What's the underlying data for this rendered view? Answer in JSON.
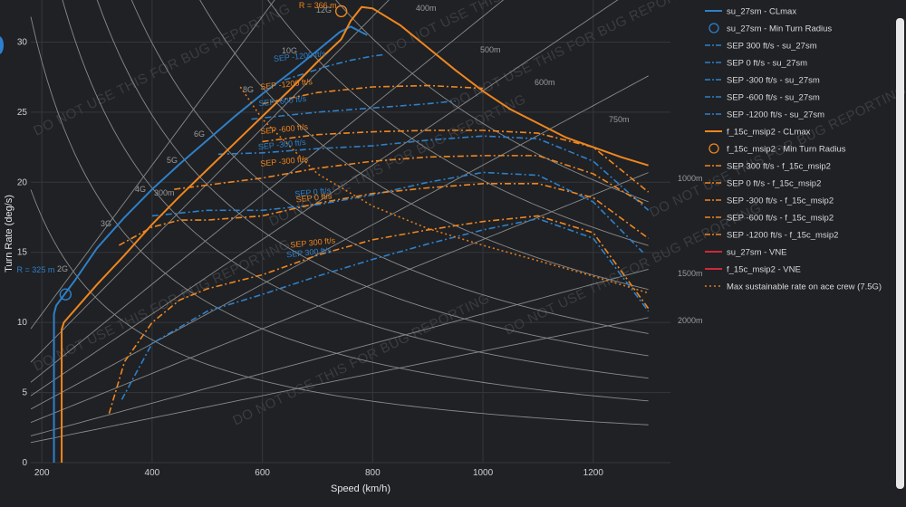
{
  "chart_data": {
    "type": "line",
    "xlabel": "Speed (km/h)",
    "ylabel": "Turn Rate (deg/s)",
    "xlim": [
      180,
      1340
    ],
    "ylim": [
      0,
      33
    ],
    "xticks": [
      200,
      400,
      600,
      800,
      1000,
      1200
    ],
    "yticks": [
      0,
      5,
      10,
      15,
      20,
      25,
      30
    ],
    "grid": true,
    "legend_position": "right",
    "watermark": "DO NOT USE THIS FOR BUG REPORTING",
    "colors": {
      "su": "#2f80c8",
      "f15": "#f0861e",
      "vne": "#d0283a",
      "sustain": "#e07a1a",
      "iso": "#8a8a8a",
      "bg": "#1f2125",
      "grid": "#34373b"
    },
    "radius_lines": [
      "300m",
      "400m",
      "500m",
      "600m",
      "750m",
      "1000m",
      "1500m",
      "2000m"
    ],
    "g_lines": [
      "2G",
      "3G",
      "4G",
      "5G",
      "6G",
      "8G",
      "10G",
      "12G"
    ],
    "annotations": {
      "su_min_radius": {
        "text": "R = 325 m",
        "x": 243,
        "y": 12.0
      },
      "f15_min_radius": {
        "text": "R = 366 m",
        "x": 743,
        "y": 32.2
      }
    },
    "series": [
      {
        "name": "su_27sm - CLmax",
        "style": "solid",
        "color": "#2f80c8",
        "x": [
          222,
          222,
          226,
          260,
          300,
          350,
          400,
          450,
          500,
          550,
          600,
          650,
          700,
          740,
          760,
          790
        ],
        "y": [
          0,
          10.6,
          11.2,
          13.0,
          15.3,
          17.5,
          19.5,
          21.3,
          23.0,
          24.7,
          26.3,
          27.8,
          29.4,
          30.7,
          31.1,
          30.5
        ]
      },
      {
        "name": "su_27sm - Min Turn Radius",
        "style": "circle",
        "color": "#2f80c8",
        "x": [
          243
        ],
        "y": [
          12.0
        ]
      },
      {
        "name": "SEP 300 ft/s - su_27sm",
        "style": "dashdot",
        "color": "#2f80c8",
        "x": [
          345,
          400,
          500,
          600,
          700,
          800,
          900,
          1000,
          1100,
          1200,
          1300
        ],
        "y": [
          4.5,
          8.5,
          10.8,
          12.0,
          13.3,
          14.5,
          15.6,
          16.6,
          17.4,
          16.0,
          10.8
        ]
      },
      {
        "name": "SEP 0 ft/s - su_27sm",
        "style": "dashdot",
        "color": "#2f80c8",
        "x": [
          400,
          500,
          600,
          700,
          800,
          900,
          1000,
          1100,
          1200,
          1290
        ],
        "y": [
          17.6,
          18.0,
          18.0,
          18.4,
          19.1,
          20.0,
          20.7,
          20.5,
          18.6,
          15.0
        ]
      },
      {
        "name": "SEP -300 ft/s - su_27sm",
        "style": "dashdot",
        "color": "#2f80c8",
        "x": [
          520,
          600,
          700,
          800,
          900,
          1000,
          1100,
          1200,
          1300
        ],
        "y": [
          22.0,
          22.1,
          22.4,
          22.6,
          23.0,
          23.3,
          23.1,
          21.5,
          18.0
        ]
      },
      {
        "name": "SEP -600 ft/s - su_27sm",
        "style": "dashdot",
        "color": "#2f80c8",
        "x": [
          580,
          650,
          700,
          800,
          900,
          950
        ],
        "y": [
          24.5,
          24.8,
          25.0,
          25.3,
          25.6,
          25.8
        ]
      },
      {
        "name": "SEP -1200 ft/s - su_27sm",
        "style": "dashdot",
        "color": "#2f80c8",
        "x": [
          640,
          680,
          720,
          760,
          800,
          820
        ],
        "y": [
          27.3,
          27.8,
          28.3,
          28.7,
          29.0,
          29.1
        ]
      },
      {
        "name": "f_15c_msip2 - CLmax",
        "style": "solid",
        "color": "#f0861e",
        "x": [
          236,
          236,
          240,
          300,
          350,
          400,
          450,
          500,
          550,
          600,
          650,
          700,
          743,
          760,
          780,
          800,
          850,
          900,
          950,
          1000,
          1050,
          1100,
          1150,
          1200,
          1250,
          1300
        ],
        "y": [
          0,
          9.5,
          10.0,
          12.7,
          14.8,
          17.0,
          19.0,
          20.9,
          22.8,
          24.7,
          26.6,
          28.6,
          30.2,
          31.5,
          32.5,
          32.4,
          31.2,
          29.6,
          28.0,
          26.5,
          25.2,
          24.2,
          23.2,
          22.5,
          21.8,
          21.2
        ]
      },
      {
        "name": "f_15c_msip2 - Min Turn Radius",
        "style": "circle",
        "color": "#f0861e",
        "x": [
          743
        ],
        "y": [
          32.2
        ]
      },
      {
        "name": "SEP 300 ft/s - f_15c_msip2",
        "style": "dashdot",
        "color": "#f0861e",
        "x": [
          322,
          350,
          400,
          450,
          500,
          600,
          700,
          800,
          900,
          1000,
          1100,
          1200,
          1300
        ],
        "y": [
          3.5,
          7.2,
          10.0,
          11.6,
          12.4,
          13.4,
          14.8,
          15.9,
          16.6,
          17.2,
          17.6,
          16.4,
          11.0
        ]
      },
      {
        "name": "SEP 0 ft/s - f_15c_msip2",
        "style": "dashdot",
        "color": "#f0861e",
        "x": [
          340,
          400,
          450,
          500,
          600,
          700,
          800,
          900,
          1000,
          1100,
          1200,
          1300
        ],
        "y": [
          15.5,
          16.8,
          17.3,
          17.3,
          17.6,
          18.5,
          19.2,
          19.6,
          19.9,
          19.9,
          18.9,
          16.0
        ]
      },
      {
        "name": "SEP -300 ft/s - f_15c_msip2",
        "style": "dashdot",
        "color": "#f0861e",
        "x": [
          440,
          500,
          600,
          700,
          800,
          900,
          1000,
          1100,
          1200,
          1290
        ],
        "y": [
          19.5,
          19.8,
          20.3,
          21.0,
          21.5,
          21.8,
          21.9,
          21.9,
          20.6,
          18.5
        ]
      },
      {
        "name": "SEP -600 ft/s - f_15c_msip2",
        "style": "dashdot",
        "color": "#f0861e",
        "x": [
          600,
          700,
          800,
          900,
          1000,
          1100,
          1200,
          1300
        ],
        "y": [
          22.9,
          23.4,
          23.6,
          23.7,
          23.7,
          23.5,
          22.5,
          19.3
        ]
      },
      {
        "name": "SEP -1200 ft/s - f_15c_msip2",
        "style": "dashdot",
        "color": "#f0861e",
        "x": [
          600,
          700,
          800,
          900,
          1000
        ],
        "y": [
          25.6,
          26.4,
          26.8,
          26.9,
          26.7
        ]
      },
      {
        "name": "su_27sm - VNE",
        "style": "solid",
        "color": "#d0283a",
        "x": [],
        "y": []
      },
      {
        "name": "f_15c_msip2 - VNE",
        "style": "solid",
        "color": "#d0283a",
        "x": [],
        "y": []
      },
      {
        "name": "Max sustainable rate on ace crew (7.5G)",
        "style": "dotted",
        "color": "#e07a1a",
        "x": [
          560,
          600,
          700,
          800,
          900,
          1000,
          1100,
          1200,
          1300
        ],
        "y": [
          26.8,
          24.5,
          20.6,
          18.3,
          16.7,
          15.5,
          14.4,
          13.3,
          12.1
        ]
      }
    ],
    "sep_labels": [
      {
        "text": "SEP -1200 ft/s",
        "x": 668,
        "y": 28.8,
        "color": "#2f80c8"
      },
      {
        "text": "SEP -1200 ft/s",
        "x": 644,
        "y": 26.8,
        "color": "#f0861e"
      },
      {
        "text": "SEP -600 ft/s",
        "x": 637,
        "y": 25.6,
        "color": "#2f80c8"
      },
      {
        "text": "SEP -600 ft/s",
        "x": 640,
        "y": 23.6,
        "color": "#f0861e"
      },
      {
        "text": "SEP -300 ft/s",
        "x": 636,
        "y": 22.5,
        "color": "#2f80c8"
      },
      {
        "text": "SEP -300 ft/s",
        "x": 640,
        "y": 21.3,
        "color": "#f0861e"
      },
      {
        "text": "SEP 0 ft/s",
        "x": 692,
        "y": 19.1,
        "color": "#2f80c8"
      },
      {
        "text": "SEP 0 ft/s",
        "x": 694,
        "y": 18.7,
        "color": "#f0861e"
      },
      {
        "text": "SEP 300 ft/s",
        "x": 692,
        "y": 15.5,
        "color": "#f0861e"
      },
      {
        "text": "SEP 300 ft/s",
        "x": 685,
        "y": 14.8,
        "color": "#2f80c8"
      }
    ]
  }
}
